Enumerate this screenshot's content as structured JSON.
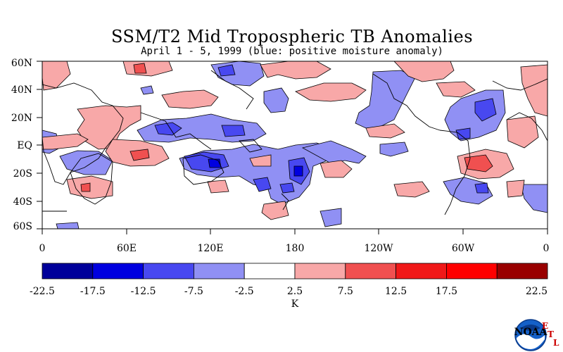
{
  "title": "SSM/T2 Mid Tropospheric TB Anomalies",
  "subtitle": "April 1 - 5, 1999 (blue: positive moisture anomaly)",
  "map": {
    "lat_labels": [
      "60N",
      "40N",
      "20N",
      "EQ",
      "20S",
      "40S",
      "60S"
    ],
    "lon_labels": [
      "0",
      "60E",
      "120E",
      "180",
      "120W",
      "60W",
      "0"
    ]
  },
  "colorbar": {
    "levels": [
      "-22.5",
      "-17.5",
      "-12.5",
      "-7.5",
      "-2.5",
      "2.5",
      "7.5",
      "12.5",
      "17.5",
      "22.5"
    ],
    "colors": [
      "#00009a",
      "#0000e0",
      "#4848f0",
      "#9090f4",
      "#ffffff",
      "#f8a8a8",
      "#f05050",
      "#f01818",
      "#ff0000",
      "#990000"
    ],
    "unit": "K"
  },
  "logo": {
    "text": "NOAA",
    "etl": [
      "E",
      "T",
      "L"
    ]
  }
}
